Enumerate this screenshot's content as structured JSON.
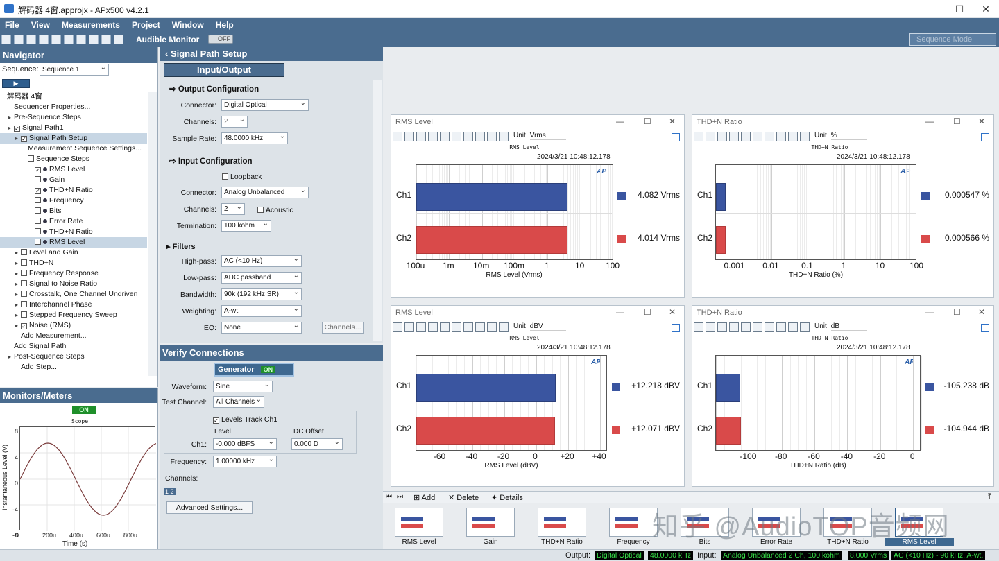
{
  "window": {
    "title": "解码器 4窗.approjx - APx500 v4.2.1"
  },
  "menu": [
    "File",
    "View",
    "Measurements",
    "Project",
    "Window",
    "Help"
  ],
  "toolbar": {
    "audible_label": "Audible Monitor",
    "audible_state": "OFF",
    "sequence_mode": "Sequence Mode"
  },
  "navigator": {
    "title": "Navigator",
    "sequence_label": "Sequence:",
    "sequence_value": "Sequence 1",
    "tree": [
      {
        "label": "解码器 4窗",
        "indent": 0
      },
      {
        "label": "Sequencer Properties...",
        "indent": 1
      },
      {
        "label": "Pre-Sequence Steps",
        "indent": 1
      },
      {
        "label": "Signal Path1",
        "indent": 1
      },
      {
        "label": "Signal Path Setup",
        "indent": 2
      },
      {
        "label": "Measurement Sequence Settings...",
        "indent": 3
      },
      {
        "label": "Sequence Steps",
        "indent": 3
      },
      {
        "label": "RMS Level",
        "indent": 4
      },
      {
        "label": "Gain",
        "indent": 4
      },
      {
        "label": "THD+N Ratio",
        "indent": 4
      },
      {
        "label": "Frequency",
        "indent": 4
      },
      {
        "label": "Bits",
        "indent": 4
      },
      {
        "label": "Error Rate",
        "indent": 4
      },
      {
        "label": "THD+N Ratio",
        "indent": 4
      },
      {
        "label": "RMS Level",
        "indent": 4
      },
      {
        "label": "Level and Gain",
        "indent": 2
      },
      {
        "label": "THD+N",
        "indent": 2
      },
      {
        "label": "Frequency Response",
        "indent": 2
      },
      {
        "label": "Signal to Noise Ratio",
        "indent": 2
      },
      {
        "label": "Crosstalk, One Channel Undriven",
        "indent": 2
      },
      {
        "label": "Interchannel Phase",
        "indent": 2
      },
      {
        "label": "Stepped Frequency Sweep",
        "indent": 2
      },
      {
        "label": "Noise (RMS)",
        "indent": 2
      },
      {
        "label": "Add Measurement...",
        "indent": 2
      },
      {
        "label": "Add Signal Path",
        "indent": 1
      },
      {
        "label": "Post-Sequence Steps",
        "indent": 1
      },
      {
        "label": "Add Step...",
        "indent": 2
      }
    ]
  },
  "monitors": {
    "title": "Monitors/Meters",
    "on_label": "ON",
    "scope_title": "Scope",
    "ylabel": "Instantaneous Level (V)",
    "xlabel": "Time (s)",
    "yticks": [
      "8",
      "4",
      "0",
      "-4",
      "-8"
    ],
    "xticks": [
      "0",
      "200u",
      "400u",
      "600u",
      "800u"
    ]
  },
  "signal_path_setup": {
    "title": "Signal Path Setup",
    "io_dropdown": "Input/Output",
    "output_config": {
      "title": "Output Configuration",
      "connector_label": "Connector:",
      "connector": "Digital Optical",
      "channels_label": "Channels:",
      "channels": "2",
      "sample_rate_label": "Sample Rate:",
      "sample_rate": "48.0000 kHz"
    },
    "input_config": {
      "title": "Input Configuration",
      "loopback": "Loopback",
      "connector_label": "Connector:",
      "connector": "Analog Unbalanced",
      "channels_label": "Channels:",
      "channels": "2",
      "acoustic": "Acoustic",
      "termination_label": "Termination:",
      "termination": "100 kohm"
    },
    "filters": {
      "title": "Filters",
      "highpass_label": "High-pass:",
      "highpass": "AC (<10 Hz)",
      "lowpass_label": "Low-pass:",
      "lowpass": "ADC passband",
      "bandwidth_label": "Bandwidth:",
      "bandwidth": "90k (192 kHz SR)",
      "weighting_label": "Weighting:",
      "weighting": "A-wt.",
      "eq_label": "EQ:",
      "eq": "None",
      "channels_button": "Channels..."
    }
  },
  "verify": {
    "title": "Verify Connections",
    "generator_label": "Generator",
    "generator_state": "ON",
    "waveform_label": "Waveform:",
    "waveform": "Sine",
    "test_channel_label": "Test Channel:",
    "test_channel": "All Channels",
    "levels_track": "Levels Track Ch1",
    "level_label": "Level",
    "dc_offset_label": "DC Offset",
    "ch1_label": "Ch1:",
    "level_value": "-0.000 dBFS",
    "dc_offset_value": "0.000 D",
    "frequency_label": "Frequency:",
    "frequency": "1.00000 kHz",
    "channels_label": "Channels:",
    "advanced_button": "Advanced Settings..."
  },
  "windows": [
    {
      "title": "RMS Level",
      "unit_label": "Unit",
      "unit": "Vrms",
      "chart_title": "RMS Level",
      "timestamp": "2024/3/21 10:48:12.178",
      "xlabel": "RMS Level (Vrms)",
      "readouts": [
        "4.082 Vrms",
        "4.014 Vrms"
      ],
      "ticks": [
        "100u",
        "1m",
        "10m",
        "100m",
        "1",
        "10",
        "100"
      ]
    },
    {
      "title": "THD+N Ratio",
      "unit_label": "Unit",
      "unit": "%",
      "chart_title": "THD+N Ratio",
      "timestamp": "2024/3/21 10:48:12.178",
      "xlabel": "THD+N Ratio (%)",
      "readouts": [
        "0.000547  %",
        "0.000566  %"
      ],
      "ticks": [
        "0.001",
        "0.01",
        "0.1",
        "1",
        "10",
        "100"
      ]
    },
    {
      "title": "RMS Level",
      "unit_label": "Unit",
      "unit": "dBV",
      "chart_title": "RMS Level",
      "timestamp": "2024/3/21 10:48:12.178",
      "xlabel": "RMS Level (dBV)",
      "readouts": [
        "+12.218  dBV",
        "+12.071  dBV"
      ],
      "ticks": [
        "-60",
        "-40",
        "-20",
        "0",
        "+20",
        "+40"
      ]
    },
    {
      "title": "THD+N Ratio",
      "unit_label": "Unit",
      "unit": "dB",
      "chart_title": "THD+N Ratio",
      "timestamp": "2024/3/21 10:48:12.178",
      "xlabel": "THD+N Ratio (dB)",
      "readouts": [
        "-105.238  dB",
        "-104.944  dB"
      ],
      "ticks": [
        "-100",
        "-80",
        "-60",
        "-40",
        "-20",
        "0"
      ]
    }
  ],
  "channels": [
    "Ch1",
    "Ch2"
  ],
  "ap_logo": "AP",
  "colors": {
    "ch1": "#3a55a0",
    "ch2": "#d94a4a",
    "accent": "#4a6c8f"
  },
  "bottom_toolbar": {
    "add": "Add",
    "delete": "Delete",
    "details": "Details"
  },
  "thumbnails": [
    "RMS Level",
    "Gain",
    "THD+N Ratio",
    "Frequency",
    "Bits",
    "Error Rate",
    "THD+N Ratio",
    "RMS Level"
  ],
  "status": {
    "output_label": "Output:",
    "output_connector": "Digital Optical",
    "output_rate": "48.0000 kHz",
    "input_label": "Input:",
    "input_connector": "Analog Unbalanced 2 Ch, 100 kohm",
    "input_level": "8.000 Vrms",
    "input_filter": "AC (<10 Hz) - 90 kHz, A-wt."
  },
  "watermark": "知乎 @AudioTOP音频网",
  "chart_data": [
    {
      "type": "bar",
      "title": "RMS Level",
      "categories": [
        "Ch1",
        "Ch2"
      ],
      "values": [
        4.082,
        4.014
      ],
      "xlabel": "RMS Level (Vrms)",
      "scale": "log",
      "xlim": [
        0.0001,
        100
      ]
    },
    {
      "type": "bar",
      "title": "THD+N Ratio",
      "categories": [
        "Ch1",
        "Ch2"
      ],
      "values": [
        0.000547,
        0.000566
      ],
      "xlabel": "THD+N Ratio (%)",
      "scale": "log",
      "xlim": [
        0.0003,
        100
      ]
    },
    {
      "type": "bar",
      "title": "RMS Level",
      "categories": [
        "Ch1",
        "Ch2"
      ],
      "values": [
        12.218,
        12.071
      ],
      "xlabel": "RMS Level (dBV)",
      "xlim": [
        -75,
        45
      ]
    },
    {
      "type": "bar",
      "title": "THD+N Ratio",
      "categories": [
        "Ch1",
        "Ch2"
      ],
      "values": [
        -105.238,
        -104.944
      ],
      "xlabel": "THD+N Ratio (dB)",
      "xlim": [
        -120,
        5
      ]
    }
  ]
}
